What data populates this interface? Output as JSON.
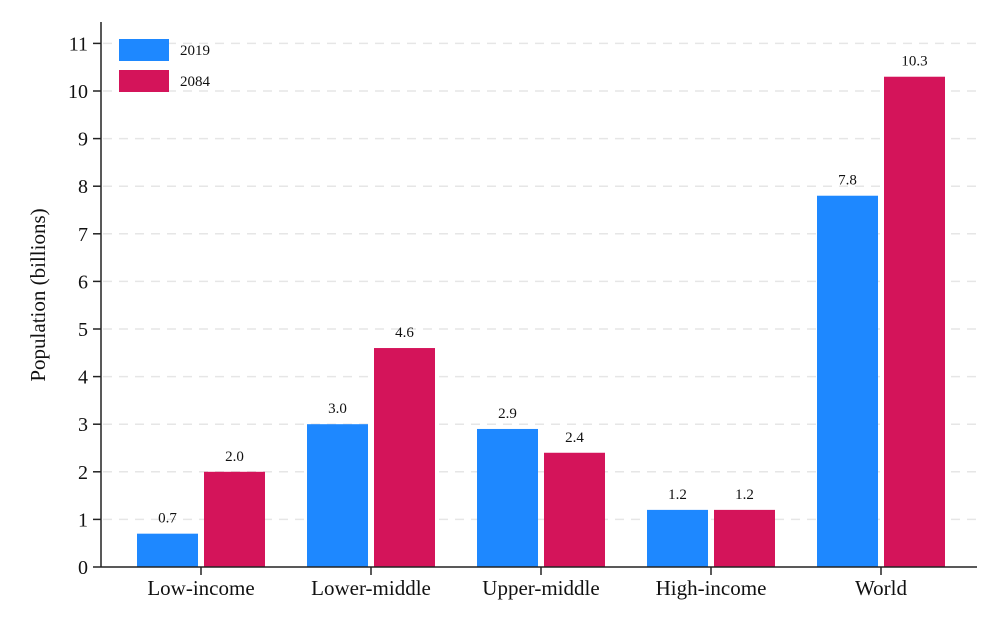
{
  "chart_data": {
    "type": "bar",
    "title": "",
    "xlabel": "",
    "ylabel": "Population (billions)",
    "ylim": [
      0,
      11.5
    ],
    "yticks": [
      0,
      1,
      2,
      3,
      4,
      5,
      6,
      7,
      8,
      9,
      10,
      11
    ],
    "grid": true,
    "legend_position": "top-left",
    "categories": [
      "Low-income",
      "Lower-middle",
      "Upper-middle",
      "High-income",
      "World"
    ],
    "series": [
      {
        "name": "2019",
        "color": "#1e88ff",
        "values": [
          0.7,
          3.0,
          2.9,
          1.2,
          7.8
        ],
        "labels": [
          "0.7",
          "3.0",
          "2.9",
          "1.2",
          "7.8"
        ]
      },
      {
        "name": "2084",
        "color": "#d4145a",
        "values": [
          2.0,
          4.6,
          2.4,
          1.2,
          10.3
        ],
        "labels": [
          "2.0",
          "4.6",
          "2.4",
          "1.2",
          "10.3"
        ]
      }
    ]
  }
}
